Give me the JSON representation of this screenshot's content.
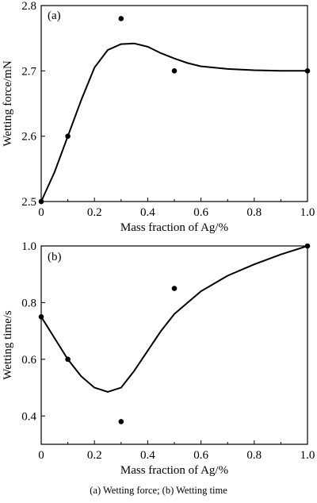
{
  "figure": {
    "caption": "(a) Wetting force;  (b) Wetting time"
  },
  "chart_data": [
    {
      "type": "scatter",
      "panel": "(a)",
      "xlabel": "Mass fraction of Ag/%",
      "ylabel": "Wetting force/mN",
      "xlim": [
        0,
        1.0
      ],
      "ylim": [
        2.5,
        2.8
      ],
      "xticks": [
        "0",
        "0.2",
        "0.4",
        "0.6",
        "0.8",
        "1.0"
      ],
      "yticks": [
        "2.5",
        "2.6",
        "2.7",
        "2.8"
      ],
      "grid": false,
      "points": [
        {
          "x": 0,
          "y": 2.5
        },
        {
          "x": 0.1,
          "y": 2.6
        },
        {
          "x": 0.3,
          "y": 2.78
        },
        {
          "x": 0.5,
          "y": 2.7
        },
        {
          "x": 1.0,
          "y": 2.7
        }
      ],
      "fit_curve": [
        {
          "x": 0,
          "y": 2.5
        },
        {
          "x": 0.05,
          "y": 2.545
        },
        {
          "x": 0.1,
          "y": 2.6
        },
        {
          "x": 0.15,
          "y": 2.655
        },
        {
          "x": 0.2,
          "y": 2.705
        },
        {
          "x": 0.25,
          "y": 2.732
        },
        {
          "x": 0.3,
          "y": 2.741
        },
        {
          "x": 0.35,
          "y": 2.742
        },
        {
          "x": 0.4,
          "y": 2.737
        },
        {
          "x": 0.45,
          "y": 2.727
        },
        {
          "x": 0.5,
          "y": 2.719
        },
        {
          "x": 0.55,
          "y": 2.712
        },
        {
          "x": 0.6,
          "y": 2.707
        },
        {
          "x": 0.7,
          "y": 2.703
        },
        {
          "x": 0.8,
          "y": 2.701
        },
        {
          "x": 0.9,
          "y": 2.7
        },
        {
          "x": 1.0,
          "y": 2.7
        }
      ]
    },
    {
      "type": "scatter",
      "panel": "(b)",
      "xlabel": "Mass fraction of Ag/%",
      "ylabel": "Wetting time/s",
      "xlim": [
        0,
        1.0
      ],
      "ylim": [
        0.3,
        1.0
      ],
      "xticks": [
        "0",
        "0.2",
        "0.4",
        "0.6",
        "0.8",
        "1.0"
      ],
      "yticks": [
        "0.4",
        "0.6",
        "0.8",
        "1.0"
      ],
      "grid": false,
      "points": [
        {
          "x": 0,
          "y": 0.75
        },
        {
          "x": 0.1,
          "y": 0.6
        },
        {
          "x": 0.3,
          "y": 0.38
        },
        {
          "x": 0.5,
          "y": 0.85
        },
        {
          "x": 1.0,
          "y": 1.0
        }
      ],
      "fit_curve": [
        {
          "x": 0,
          "y": 0.75
        },
        {
          "x": 0.05,
          "y": 0.675
        },
        {
          "x": 0.1,
          "y": 0.6
        },
        {
          "x": 0.15,
          "y": 0.54
        },
        {
          "x": 0.2,
          "y": 0.5
        },
        {
          "x": 0.25,
          "y": 0.485
        },
        {
          "x": 0.3,
          "y": 0.5
        },
        {
          "x": 0.35,
          "y": 0.56
        },
        {
          "x": 0.4,
          "y": 0.63
        },
        {
          "x": 0.45,
          "y": 0.7
        },
        {
          "x": 0.5,
          "y": 0.76
        },
        {
          "x": 0.55,
          "y": 0.8
        },
        {
          "x": 0.6,
          "y": 0.84
        },
        {
          "x": 0.7,
          "y": 0.895
        },
        {
          "x": 0.8,
          "y": 0.935
        },
        {
          "x": 0.9,
          "y": 0.97
        },
        {
          "x": 1.0,
          "y": 1.0
        }
      ]
    }
  ]
}
